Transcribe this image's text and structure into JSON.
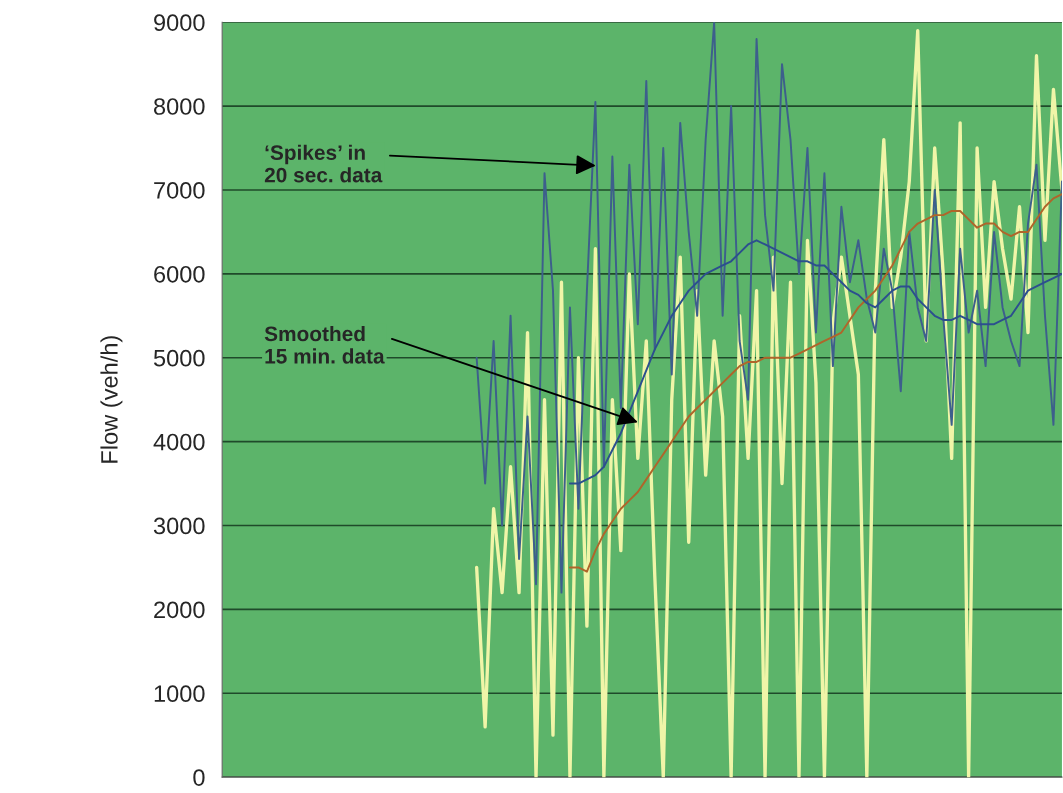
{
  "chart_data": {
    "type": "line",
    "ylabel": "Flow (veh/h)",
    "categories": [
      null,
      null,
      null,
      null,
      null,
      null,
      null,
      null,
      null,
      null,
      null,
      null,
      null,
      null,
      null,
      null,
      null,
      null,
      null,
      null,
      null,
      null,
      null,
      null,
      null,
      null,
      null,
      null,
      null,
      null,
      null,
      null,
      null,
      null,
      null,
      null,
      null,
      null,
      null,
      null,
      null,
      null,
      null,
      null,
      null,
      null,
      null,
      null,
      null,
      null,
      null,
      null,
      null,
      null,
      null,
      null,
      null,
      null,
      null,
      null,
      null,
      null,
      null,
      null,
      null,
      null,
      null,
      null,
      null,
      null,
      null,
      null,
      null,
      null,
      null,
      null,
      null,
      null,
      null,
      null,
      null,
      null,
      null,
      null,
      null,
      null,
      null,
      null,
      null,
      null,
      null,
      null,
      null,
      null,
      null,
      null,
      null,
      null,
      null,
      null
    ],
    "series": [
      {
        "color": "#f0f5a8",
        "values": [
          null,
          null,
          null,
          null,
          null,
          null,
          null,
          null,
          null,
          null,
          null,
          null,
          null,
          null,
          null,
          null,
          null,
          null,
          null,
          null,
          null,
          null,
          null,
          null,
          null,
          null,
          null,
          null,
          null,
          null,
          2500,
          600,
          3200,
          2200,
          3700,
          2200,
          5300,
          0,
          4500,
          500,
          5900,
          0,
          5000,
          1800,
          6300,
          0,
          4500,
          2700,
          6000,
          3800,
          5200,
          2400,
          0,
          4500,
          6200,
          2800,
          5800,
          3600,
          5200,
          4300,
          0,
          5500,
          3800,
          5800,
          0,
          6200,
          3500,
          5900,
          0,
          6400,
          4700,
          0,
          5400,
          6200,
          5500,
          4800,
          0,
          5800,
          7600,
          5600,
          6200,
          7100,
          8900,
          5200,
          7500,
          6000,
          3800,
          7800,
          0,
          7500,
          5600,
          7100,
          6300,
          5700,
          6800,
          5300,
          8600,
          6400,
          8200,
          7000
        ]
      },
      {
        "color": "#3d5f8c",
        "values": [
          null,
          null,
          null,
          null,
          null,
          null,
          null,
          null,
          null,
          null,
          null,
          null,
          null,
          null,
          null,
          null,
          null,
          null,
          null,
          null,
          null,
          null,
          null,
          null,
          null,
          null,
          null,
          null,
          null,
          null,
          5000,
          3500,
          5200,
          3000,
          5500,
          2600,
          4300,
          2300,
          7200,
          5800,
          2200,
          5600,
          3200,
          5800,
          8050,
          3700,
          7400,
          4400,
          7300,
          5400,
          8300,
          5100,
          7500,
          4800,
          7800,
          6500,
          5500,
          7600,
          9000,
          5500,
          8000,
          5200,
          4500,
          8800,
          6700,
          5800,
          8500,
          7600,
          6000,
          7500,
          5300,
          7200,
          4900,
          6800,
          5900,
          6400,
          5700,
          5300,
          6300,
          5800,
          4600,
          6500,
          5600,
          5200,
          7000,
          5500,
          4200,
          6300,
          5300,
          5800,
          4900,
          6500,
          5600,
          5200,
          4900,
          6600,
          7300,
          5500,
          4200,
          7100
        ]
      },
      {
        "color": "#b0652a",
        "values": [
          null,
          null,
          null,
          null,
          null,
          null,
          null,
          null,
          null,
          null,
          null,
          null,
          null,
          null,
          null,
          null,
          null,
          null,
          null,
          null,
          null,
          null,
          null,
          null,
          null,
          null,
          null,
          null,
          null,
          null,
          null,
          null,
          null,
          null,
          null,
          null,
          null,
          null,
          null,
          null,
          null,
          2500,
          2500,
          2450,
          2700,
          2900,
          3050,
          3200,
          3300,
          3400,
          3550,
          3700,
          3850,
          4000,
          4150,
          4300,
          4400,
          4500,
          4600,
          4700,
          4800,
          4900,
          4950,
          4950,
          5000,
          5000,
          5000,
          5000,
          5050,
          5100,
          5150,
          5200,
          5250,
          5300,
          5450,
          5600,
          5700,
          5800,
          5950,
          6100,
          6300,
          6500,
          6600,
          6650,
          6700,
          6700,
          6750,
          6750,
          6650,
          6550,
          6600,
          6600,
          6500,
          6450,
          6500,
          6500,
          6650,
          6800,
          6900,
          6950
        ]
      },
      {
        "color": "#2c4f8e",
        "values": [
          null,
          null,
          null,
          null,
          null,
          null,
          null,
          null,
          null,
          null,
          null,
          null,
          null,
          null,
          null,
          null,
          null,
          null,
          null,
          null,
          null,
          null,
          null,
          null,
          null,
          null,
          null,
          null,
          null,
          null,
          null,
          null,
          null,
          null,
          null,
          null,
          null,
          null,
          null,
          null,
          null,
          3500,
          3500,
          3550,
          3600,
          3700,
          3900,
          4100,
          4350,
          4600,
          4850,
          5100,
          5300,
          5500,
          5650,
          5800,
          5900,
          6000,
          6050,
          6100,
          6150,
          6250,
          6350,
          6400,
          6350,
          6300,
          6250,
          6200,
          6150,
          6150,
          6100,
          6100,
          6000,
          5900,
          5800,
          5750,
          5650,
          5600,
          5700,
          5800,
          5850,
          5850,
          5700,
          5600,
          5500,
          5450,
          5450,
          5500,
          5450,
          5400,
          5400,
          5400,
          5450,
          5500,
          5650,
          5800,
          5850,
          5900,
          5950,
          6000
        ]
      }
    ],
    "ylim": [
      0,
      9000
    ],
    "yticks": [
      0,
      1000,
      2000,
      3000,
      4000,
      5000,
      6000,
      7000,
      8000,
      9000
    ],
    "grid": "y",
    "tick_labels": "y",
    "legend": false,
    "annotations": [
      "‘Spikes’ in\n20 sec. data",
      "Smoothed\n15 min. data"
    ]
  }
}
